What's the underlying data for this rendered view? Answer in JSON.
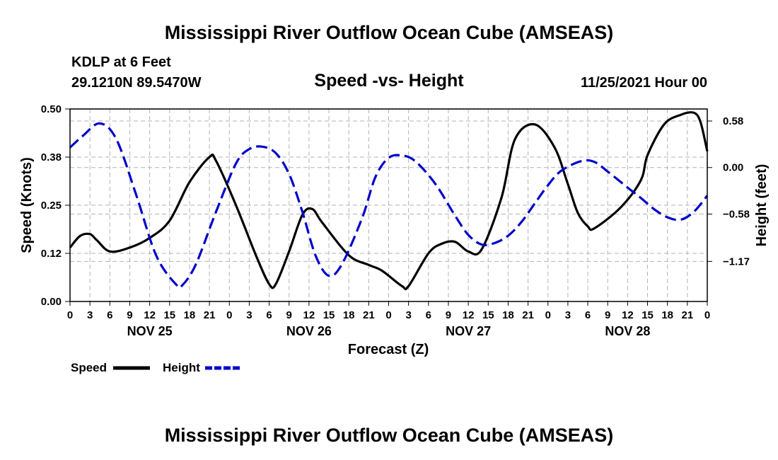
{
  "title": "Mississippi River Outflow Ocean Cube (AMSEAS)",
  "title_repeat": "Mississippi River Outflow Ocean Cube (AMSEAS)",
  "station": {
    "name": "KDLP at 6 Feet",
    "coords": "29.1210N  89.5470W",
    "datetime": "11/25/2021 Hour 00"
  },
  "chart_data": {
    "type": "line",
    "title": "Speed -vs- Height",
    "xlabel": "Forecast (Z)",
    "ylabel": "Speed (Knots)",
    "y2label": "Height (feet)",
    "x_hours_range": [
      0,
      96
    ],
    "ylim": [
      0,
      0.5
    ],
    "y2lim": [
      -1.67,
      0.73
    ],
    "yticks": [
      0.0,
      0.125,
      0.25,
      0.375,
      0.5
    ],
    "ytick_labels": [
      "0.00",
      "0.12",
      "0.25",
      "0.38",
      "0.50"
    ],
    "y2ticks": [
      0.58,
      0.0,
      -0.58,
      -1.17
    ],
    "y2tick_labels": [
      "0.58",
      "0.00",
      "−0.58",
      "−1.17"
    ],
    "hour_tick_labels": [
      "0",
      "3",
      "6",
      "9",
      "12",
      "15",
      "18",
      "21",
      "0",
      "3",
      "6",
      "9",
      "12",
      "15",
      "18",
      "21",
      "0",
      "3",
      "6",
      "9",
      "12",
      "15",
      "18",
      "21",
      "0",
      "3",
      "6",
      "9",
      "12",
      "15",
      "18",
      "21",
      "0"
    ],
    "day_labels": [
      {
        "label": "NOV 25",
        "hour": 12
      },
      {
        "label": "NOV 26",
        "hour": 36
      },
      {
        "label": "NOV 27",
        "hour": 60
      },
      {
        "label": "NOV 28",
        "hour": 84
      }
    ],
    "grid": true,
    "series": [
      {
        "name": "Speed",
        "axis": "left",
        "color": "#000000",
        "dash": "solid",
        "x": [
          0,
          1.5,
          3,
          4,
          6,
          9,
          12,
          15,
          18,
          21,
          22,
          25,
          28,
          30,
          31,
          33,
          35,
          36.5,
          38,
          42,
          45,
          47,
          50,
          51,
          54,
          56,
          58,
          60,
          62,
          65,
          67,
          70,
          73,
          75,
          76.5,
          78,
          79,
          83,
          86,
          87,
          89.5,
          92,
          94,
          95,
          96
        ],
        "y": [
          0.14,
          0.17,
          0.175,
          0.16,
          0.13,
          0.14,
          0.165,
          0.21,
          0.31,
          0.375,
          0.365,
          0.25,
          0.12,
          0.045,
          0.045,
          0.13,
          0.225,
          0.24,
          0.205,
          0.12,
          0.095,
          0.08,
          0.04,
          0.04,
          0.125,
          0.15,
          0.155,
          0.13,
          0.135,
          0.27,
          0.42,
          0.46,
          0.4,
          0.305,
          0.23,
          0.195,
          0.19,
          0.245,
          0.315,
          0.38,
          0.46,
          0.485,
          0.49,
          0.465,
          0.39
        ]
      },
      {
        "name": "Height",
        "axis": "right",
        "color": "#0000cc",
        "dash": "dashed",
        "x": [
          0,
          2,
          4.5,
          7,
          10,
          13,
          16,
          17,
          19,
          22,
          25,
          27,
          29,
          31,
          33,
          35,
          37,
          39,
          41,
          44,
          46,
          48,
          50,
          52,
          55,
          58,
          60,
          62,
          64,
          66,
          68,
          70,
          72,
          74,
          77,
          79,
          81,
          84,
          86,
          88,
          90,
          92,
          94,
          96
        ],
        "y": [
          0.25,
          0.4,
          0.55,
          0.35,
          -0.35,
          -1.1,
          -1.46,
          -1.46,
          -1.2,
          -0.55,
          0.05,
          0.23,
          0.26,
          0.18,
          -0.08,
          -0.55,
          -1.1,
          -1.35,
          -1.2,
          -0.63,
          -0.12,
          0.12,
          0.15,
          0.08,
          -0.2,
          -0.6,
          -0.84,
          -0.96,
          -0.94,
          -0.85,
          -0.68,
          -0.45,
          -0.22,
          -0.04,
          0.08,
          0.07,
          -0.05,
          -0.25,
          -0.38,
          -0.52,
          -0.62,
          -0.65,
          -0.55,
          -0.35
        ]
      }
    ],
    "legend": [
      {
        "label": "Speed",
        "color": "#000000",
        "dash": "solid"
      },
      {
        "label": "Height",
        "color": "#0000cc",
        "dash": "dashed"
      }
    ]
  }
}
